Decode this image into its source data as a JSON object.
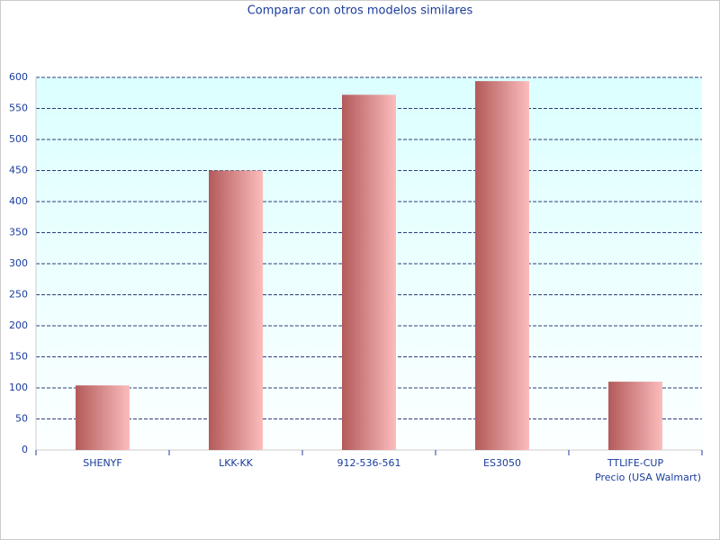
{
  "chart_data": {
    "type": "bar",
    "title": "Comparar con otros modelos similares",
    "x_label": "Precio (USA Walmart)",
    "categories": [
      "SHENYF",
      "LKK-KK",
      "912-536-561",
      "ES3050",
      "TTLIFE-CUP"
    ],
    "values": [
      104,
      450,
      572,
      594,
      110
    ],
    "colors": [
      "#b35a5a",
      "#fcbcbc"
    ],
    "ylim": [
      0,
      600
    ],
    "yticks": [
      0,
      50,
      100,
      150,
      200,
      250,
      300,
      350,
      400,
      450,
      500,
      550,
      600
    ],
    "grid": true
  }
}
